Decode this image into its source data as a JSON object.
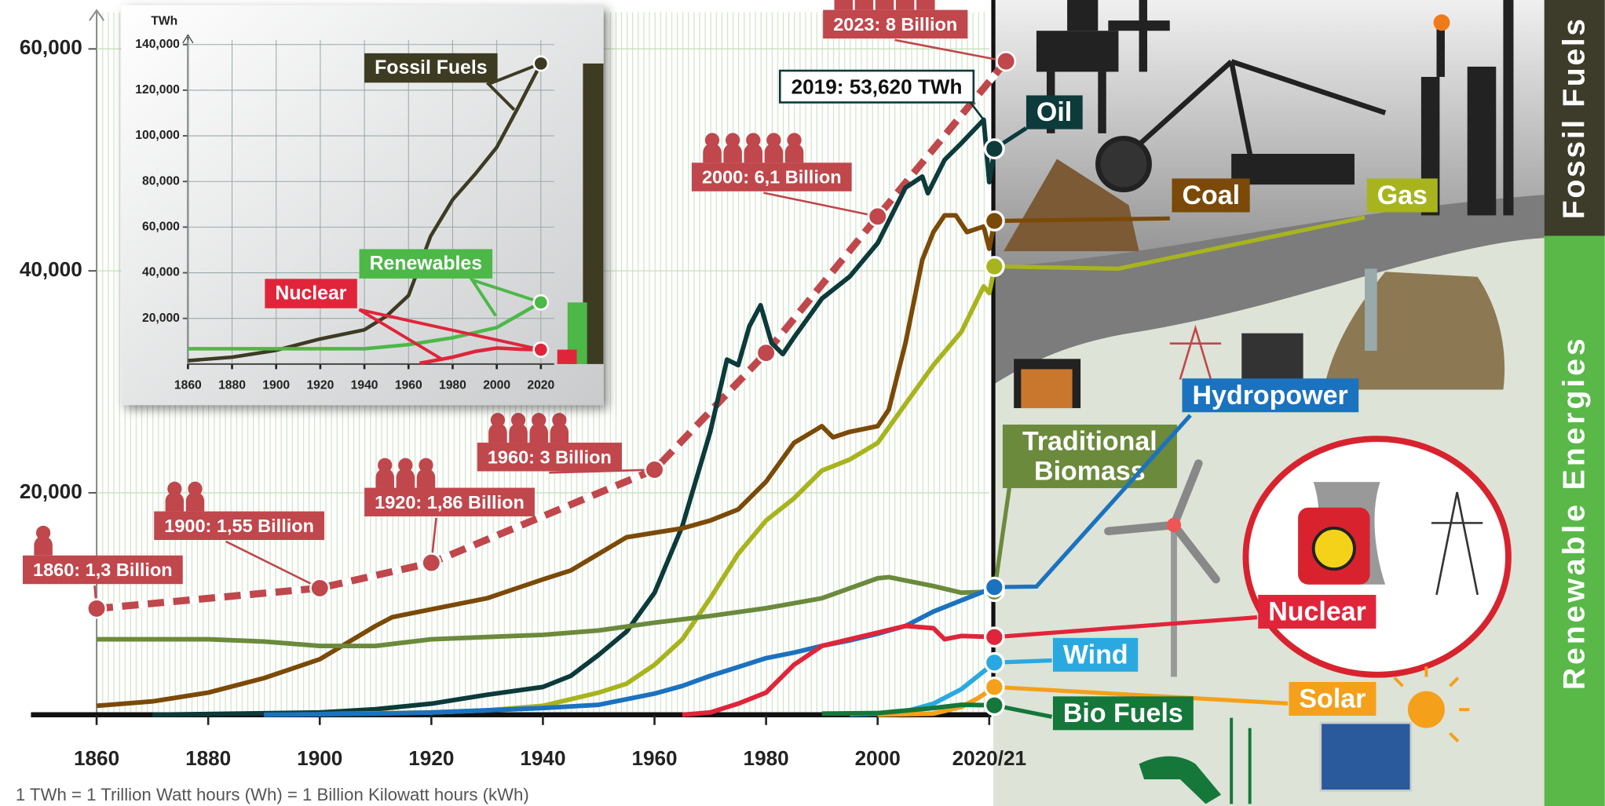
{
  "chart_data": [
    {
      "type": "line",
      "xlim": [
        1860,
        2020
      ],
      "xticks": [
        1860,
        1880,
        1900,
        1920,
        1940,
        1960,
        1980,
        2000,
        {
          "value": 2020,
          "label": "2020/21"
        }
      ],
      "ylim": [
        0,
        63300
      ],
      "yticks": [
        {
          "value": 20000,
          "label": "20,000"
        },
        {
          "value": 40000,
          "label": "40,000"
        },
        {
          "value": 60000,
          "label": "60,000"
        }
      ],
      "grid": true,
      "series": [
        {
          "name": "Oil",
          "color": "#0d3a3a",
          "x": [
            1870,
            1900,
            1910,
            1920,
            1930,
            1940,
            1945,
            1950,
            1955,
            1960,
            1965,
            1970,
            1973,
            1975,
            1977,
            1979,
            1981,
            1983,
            1985,
            1990,
            1995,
            2000,
            2005,
            2008,
            2009,
            2012,
            2015,
            2019,
            2020,
            2021
          ],
          "values": [
            0,
            200,
            500,
            1000,
            1800,
            2500,
            3500,
            5400,
            7500,
            11000,
            17000,
            25500,
            32000,
            31500,
            35000,
            36900,
            33500,
            32500,
            34000,
            37500,
            39500,
            42500,
            47500,
            48500,
            47000,
            50000,
            51500,
            53620,
            48000,
            51000
          ]
        },
        {
          "name": "Coal",
          "color": "#7b4a08",
          "x": [
            1860,
            1870,
            1880,
            1890,
            1900,
            1910,
            1913,
            1920,
            1930,
            1940,
            1945,
            1950,
            1955,
            1960,
            1965,
            1970,
            1975,
            1980,
            1985,
            1990,
            1992,
            1995,
            2000,
            2002,
            2005,
            2008,
            2010,
            2012,
            2014,
            2016,
            2019,
            2020,
            2021
          ],
          "values": [
            800,
            1200,
            2000,
            3300,
            5000,
            8000,
            8800,
            9500,
            10500,
            12200,
            13000,
            14500,
            16000,
            16400,
            16800,
            17500,
            18500,
            21000,
            24500,
            26000,
            25000,
            25500,
            26000,
            27500,
            33500,
            41000,
            43500,
            45000,
            45000,
            43500,
            44000,
            42000,
            44500
          ]
        },
        {
          "name": "Gas",
          "color": "#a8b41e",
          "x": [
            1900,
            1920,
            1930,
            1940,
            1950,
            1955,
            1960,
            1965,
            1970,
            1975,
            1980,
            1985,
            1990,
            1995,
            2000,
            2005,
            2010,
            2015,
            2019,
            2020,
            2021
          ],
          "values": [
            60,
            200,
            400,
            800,
            2000,
            2800,
            4500,
            6800,
            10500,
            14500,
            17500,
            19500,
            22000,
            23000,
            24500,
            28000,
            31500,
            34500,
            38600,
            38000,
            40400
          ]
        },
        {
          "name": "Traditional Biomass",
          "color": "#6b8a3c",
          "x": [
            1860,
            1880,
            1890,
            1900,
            1910,
            1920,
            1930,
            1940,
            1950,
            1960,
            1970,
            1980,
            1990,
            2000,
            2002,
            2010,
            2015,
            2021
          ],
          "values": [
            6800,
            6800,
            6600,
            6200,
            6200,
            6800,
            7000,
            7200,
            7600,
            8300,
            8900,
            9600,
            10500,
            12300,
            12400,
            11600,
            11000,
            11100
          ]
        },
        {
          "name": "Hydropower",
          "color": "#1b72bf",
          "x": [
            1890,
            1900,
            1910,
            1920,
            1930,
            1940,
            1950,
            1960,
            1965,
            1970,
            1975,
            1980,
            1985,
            1990,
            1995,
            2000,
            2005,
            2010,
            2015,
            2021
          ],
          "values": [
            0,
            50,
            100,
            200,
            400,
            600,
            900,
            1900,
            2600,
            3500,
            4300,
            5100,
            5600,
            6200,
            6700,
            7300,
            8000,
            9300,
            10300,
            11500
          ]
        },
        {
          "name": "Nuclear",
          "color": "#e0253a",
          "x": [
            1965,
            1970,
            1975,
            1980,
            1985,
            1990,
            1995,
            2000,
            2005,
            2010,
            2012,
            2015,
            2021
          ],
          "values": [
            0,
            200,
            1000,
            2000,
            4500,
            6200,
            6800,
            7400,
            8000,
            7800,
            6800,
            7100,
            7000
          ]
        },
        {
          "name": "Wind",
          "color": "#2aa9e0",
          "x": [
            1995,
            2000,
            2005,
            2010,
            2015,
            2021
          ],
          "values": [
            50,
            100,
            300,
            1000,
            2300,
            4700
          ]
        },
        {
          "name": "Solar",
          "color": "#f5a01a",
          "x": [
            2000,
            2010,
            2015,
            2018,
            2021
          ],
          "values": [
            0,
            100,
            700,
            1500,
            2500
          ]
        },
        {
          "name": "Bio Fuels",
          "color": "#15773a",
          "x": [
            1990,
            2000,
            2010,
            2015,
            2021
          ],
          "values": [
            100,
            150,
            600,
            900,
            850
          ]
        }
      ],
      "annotations": [
        {
          "text": "2019: 53,620 TWh",
          "x": 2019,
          "y": 53620
        }
      ],
      "y2lim": [
        0,
        8.6
      ],
      "population": {
        "axis": "y2",
        "color": "#c0474c",
        "x": [
          1860,
          1900,
          1920,
          1960,
          1980,
          2000,
          2023
        ],
        "values": [
          1.3,
          1.55,
          1.86,
          3,
          4.43,
          6.1,
          8
        ],
        "value_labels": [
          "1860: 1,3 Billion",
          "1900: 1,55 Billion",
          "1920: 1,86 Billion",
          "1960: 3 Billion",
          null,
          "2000: 6,1 Billion",
          "2023: 8 Billion"
        ]
      },
      "group_labels": [
        "Fossil Fuels",
        "Renewable Energies"
      ],
      "note": "1 TWh = 1 Trillion Watt hours (Wh) = 1 Billion Kilowatt hours (kWh)"
    },
    {
      "type": "line",
      "y_label": "TWh",
      "xlim": [
        1860,
        2020
      ],
      "xticks": [
        1860,
        1880,
        1900,
        1920,
        1940,
        1960,
        1980,
        2000,
        2020
      ],
      "ylim": [
        0,
        142000
      ],
      "yticks": [
        {
          "value": 20000,
          "label": "20,000"
        },
        {
          "value": 40000,
          "label": "40,000"
        },
        {
          "value": 60000,
          "label": "60,000"
        },
        {
          "value": 80000,
          "label": "80,000"
        },
        {
          "value": 100000,
          "label": "100,000"
        },
        {
          "value": 120000,
          "label": "120,000"
        },
        {
          "value": 140000,
          "label": "140,000"
        }
      ],
      "grid": true,
      "series": [
        {
          "name": "Fossil Fuels",
          "color": "#3d3b22",
          "x": [
            1860,
            1880,
            1900,
            1920,
            1940,
            1950,
            1960,
            1970,
            1980,
            1990,
            2000,
            2010,
            2020
          ],
          "values": [
            1500,
            3000,
            6000,
            11000,
            15000,
            21000,
            30000,
            56000,
            72000,
            83000,
            95000,
            113000,
            131700
          ]
        },
        {
          "name": "Renewables",
          "color": "#4cb848",
          "x": [
            1860,
            1900,
            1940,
            1960,
            1980,
            2000,
            2020
          ],
          "values": [
            6700,
            6700,
            6700,
            8500,
            11500,
            16000,
            27000
          ]
        },
        {
          "name": "Nuclear",
          "color": "#e0253a",
          "x": [
            1965,
            1980,
            1990,
            2000,
            2010,
            2020
          ],
          "values": [
            300,
            3000,
            5500,
            7000,
            6500,
            6300
          ]
        }
      ]
    }
  ]
}
